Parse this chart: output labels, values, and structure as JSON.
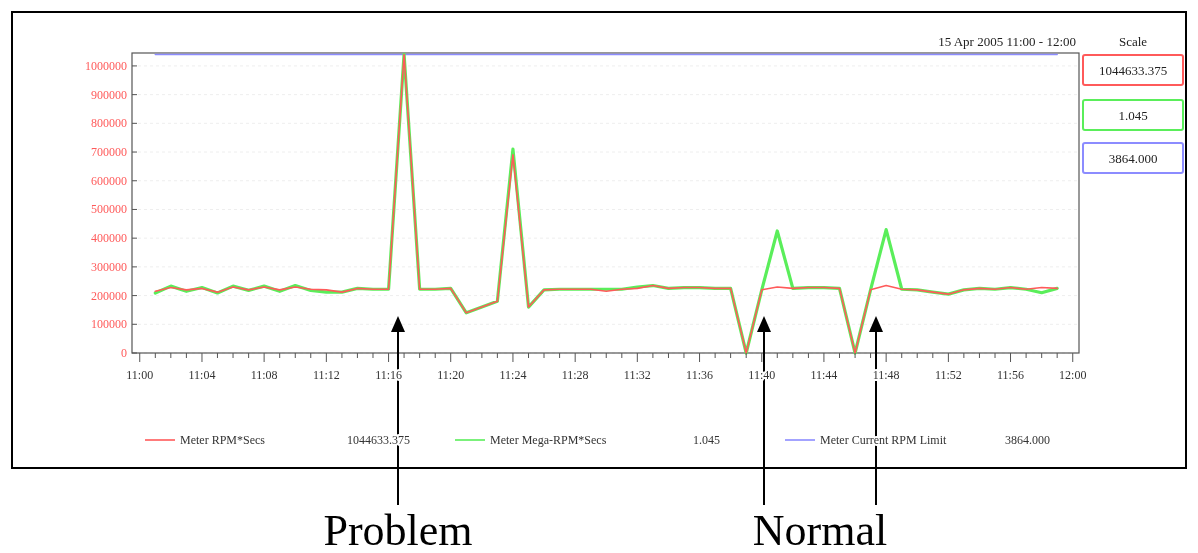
{
  "chart_data": {
    "type": "line",
    "title": "15 Apr 2005 11:00 - 12:00",
    "x": [
      11.0167,
      11.0333,
      11.05,
      11.0667,
      11.0833,
      11.1,
      11.1167,
      11.1333,
      11.15,
      11.1667,
      11.1833,
      11.2,
      11.2167,
      11.2333,
      11.25,
      11.2667,
      11.2833,
      11.3,
      11.3167,
      11.3333,
      11.35,
      11.3667,
      11.3833,
      11.4,
      11.4167,
      11.4333,
      11.45,
      11.4667,
      11.4833,
      11.5,
      11.5167,
      11.5333,
      11.55,
      11.5667,
      11.5833,
      11.6,
      11.6167,
      11.6333,
      11.65,
      11.6667,
      11.6833,
      11.7,
      11.7167,
      11.7333,
      11.75,
      11.7667,
      11.7833,
      11.8,
      11.8167,
      11.8333,
      11.85,
      11.8667,
      11.8833,
      11.9,
      11.9167,
      11.9333,
      11.95,
      11.9667,
      11.9833
    ],
    "series": [
      {
        "name": "Meter RPM*Secs",
        "color": "#ff5a5a",
        "values": [
          215000,
          228000,
          220000,
          225000,
          212000,
          230000,
          220000,
          230000,
          220000,
          230000,
          222000,
          220000,
          212000,
          225000,
          222000,
          222000,
          1040000,
          222000,
          222000,
          225000,
          140000,
          160000,
          180000,
          690000,
          160000,
          220000,
          222000,
          222000,
          222000,
          215000,
          222000,
          225000,
          235000,
          225000,
          228000,
          228000,
          225000,
          225000,
          0,
          220000,
          230000,
          225000,
          228000,
          228000,
          225000,
          0,
          220000,
          235000,
          222000,
          220000,
          212000,
          205000,
          220000,
          225000,
          222000,
          228000,
          222000,
          228000,
          225000
        ]
      },
      {
        "name": "Meter Mega-RPM*Secs",
        "color": "#5aee5a",
        "values": [
          209000,
          233000,
          215000,
          228000,
          209000,
          233000,
          218000,
          233000,
          215000,
          235000,
          218000,
          212000,
          212000,
          225000,
          222000,
          222000,
          1040000,
          222000,
          222000,
          225000,
          140000,
          160000,
          180000,
          710000,
          160000,
          220000,
          222000,
          222000,
          222000,
          222000,
          222000,
          230000,
          235000,
          225000,
          228000,
          228000,
          225000,
          225000,
          0,
          220000,
          425000,
          225000,
          228000,
          228000,
          225000,
          0,
          220000,
          430000,
          222000,
          220000,
          212000,
          205000,
          220000,
          225000,
          222000,
          228000,
          222000,
          210000,
          225000
        ]
      },
      {
        "name": "Meter Current RPM Limit",
        "color": "#8c8cff",
        "values": [
          1040000,
          1040000,
          1040000,
          1040000,
          1040000,
          1040000,
          1040000,
          1040000,
          1040000,
          1040000,
          1040000,
          1040000,
          1040000,
          1040000,
          1040000,
          1040000,
          1040000,
          1040000,
          1040000,
          1040000,
          1040000,
          1040000,
          1040000,
          1040000,
          1040000,
          1040000,
          1040000,
          1040000,
          1040000,
          1040000,
          1040000,
          1040000,
          1040000,
          1040000,
          1040000,
          1040000,
          1040000,
          1040000,
          1040000,
          1040000,
          1040000,
          1040000,
          1040000,
          1040000,
          1040000,
          1040000,
          1040000,
          1040000,
          1040000,
          1040000,
          1040000,
          1040000,
          1040000,
          1040000,
          1040000,
          1040000,
          1040000,
          1040000,
          1040000
        ]
      }
    ],
    "xlim": [
      10.9917,
      12.0067
    ],
    "xticks": [
      {
        "value": 11,
        "label": "11:00"
      },
      {
        "value": 11.0167,
        "label": null
      },
      {
        "value": 11.0333,
        "label": null
      },
      {
        "value": 11.05,
        "label": null
      },
      {
        "value": 11.0667,
        "label": "11:04"
      },
      {
        "value": 11.0833,
        "label": null
      },
      {
        "value": 11.1,
        "label": null
      },
      {
        "value": 11.1167,
        "label": null
      },
      {
        "value": 11.1333,
        "label": "11:08"
      },
      {
        "value": 11.15,
        "label": null
      },
      {
        "value": 11.1667,
        "label": null
      },
      {
        "value": 11.1833,
        "label": null
      },
      {
        "value": 11.2,
        "label": "11:12"
      },
      {
        "value": 11.2167,
        "label": null
      },
      {
        "value": 11.2333,
        "label": null
      },
      {
        "value": 11.25,
        "label": null
      },
      {
        "value": 11.2667,
        "label": "11:16"
      },
      {
        "value": 11.2833,
        "label": null
      },
      {
        "value": 11.3,
        "label": null
      },
      {
        "value": 11.3167,
        "label": null
      },
      {
        "value": 11.3333,
        "label": "11:20"
      },
      {
        "value": 11.35,
        "label": null
      },
      {
        "value": 11.3667,
        "label": null
      },
      {
        "value": 11.3833,
        "label": null
      },
      {
        "value": 11.4,
        "label": "11:24"
      },
      {
        "value": 11.4167,
        "label": null
      },
      {
        "value": 11.4333,
        "label": null
      },
      {
        "value": 11.45,
        "label": null
      },
      {
        "value": 11.4667,
        "label": "11:28"
      },
      {
        "value": 11.4833,
        "label": null
      },
      {
        "value": 11.5,
        "label": null
      },
      {
        "value": 11.5167,
        "label": null
      },
      {
        "value": 11.5333,
        "label": "11:32"
      },
      {
        "value": 11.55,
        "label": null
      },
      {
        "value": 11.5667,
        "label": null
      },
      {
        "value": 11.5833,
        "label": null
      },
      {
        "value": 11.6,
        "label": "11:36"
      },
      {
        "value": 11.6167,
        "label": null
      },
      {
        "value": 11.6333,
        "label": null
      },
      {
        "value": 11.65,
        "label": null
      },
      {
        "value": 11.6667,
        "label": "11:40"
      },
      {
        "value": 11.6833,
        "label": null
      },
      {
        "value": 11.7,
        "label": null
      },
      {
        "value": 11.7167,
        "label": null
      },
      {
        "value": 11.7333,
        "label": "11:44"
      },
      {
        "value": 11.75,
        "label": null
      },
      {
        "value": 11.7667,
        "label": null
      },
      {
        "value": 11.7833,
        "label": null
      },
      {
        "value": 11.8,
        "label": "11:48"
      },
      {
        "value": 11.8167,
        "label": null
      },
      {
        "value": 11.8333,
        "label": null
      },
      {
        "value": 11.85,
        "label": null
      },
      {
        "value": 11.8667,
        "label": "11:52"
      },
      {
        "value": 11.8833,
        "label": null
      },
      {
        "value": 11.9,
        "label": null
      },
      {
        "value": 11.9167,
        "label": null
      },
      {
        "value": 11.9333,
        "label": "11:56"
      },
      {
        "value": 11.95,
        "label": null
      },
      {
        "value": 11.9667,
        "label": null
      },
      {
        "value": 11.9833,
        "label": null
      },
      {
        "value": 12,
        "label": "12:00"
      }
    ],
    "ylim": [
      0,
      1045000
    ],
    "yticks": [
      0,
      100000,
      200000,
      300000,
      400000,
      500000,
      600000,
      700000,
      800000,
      900000,
      1000000
    ],
    "grid": "y",
    "legend": "bottom",
    "marker": "none",
    "line_style": "solid",
    "annotations": [
      "Scale",
      "1044633.375",
      "1.045",
      "3864.000",
      "Problem",
      "Normal"
    ]
  }
}
